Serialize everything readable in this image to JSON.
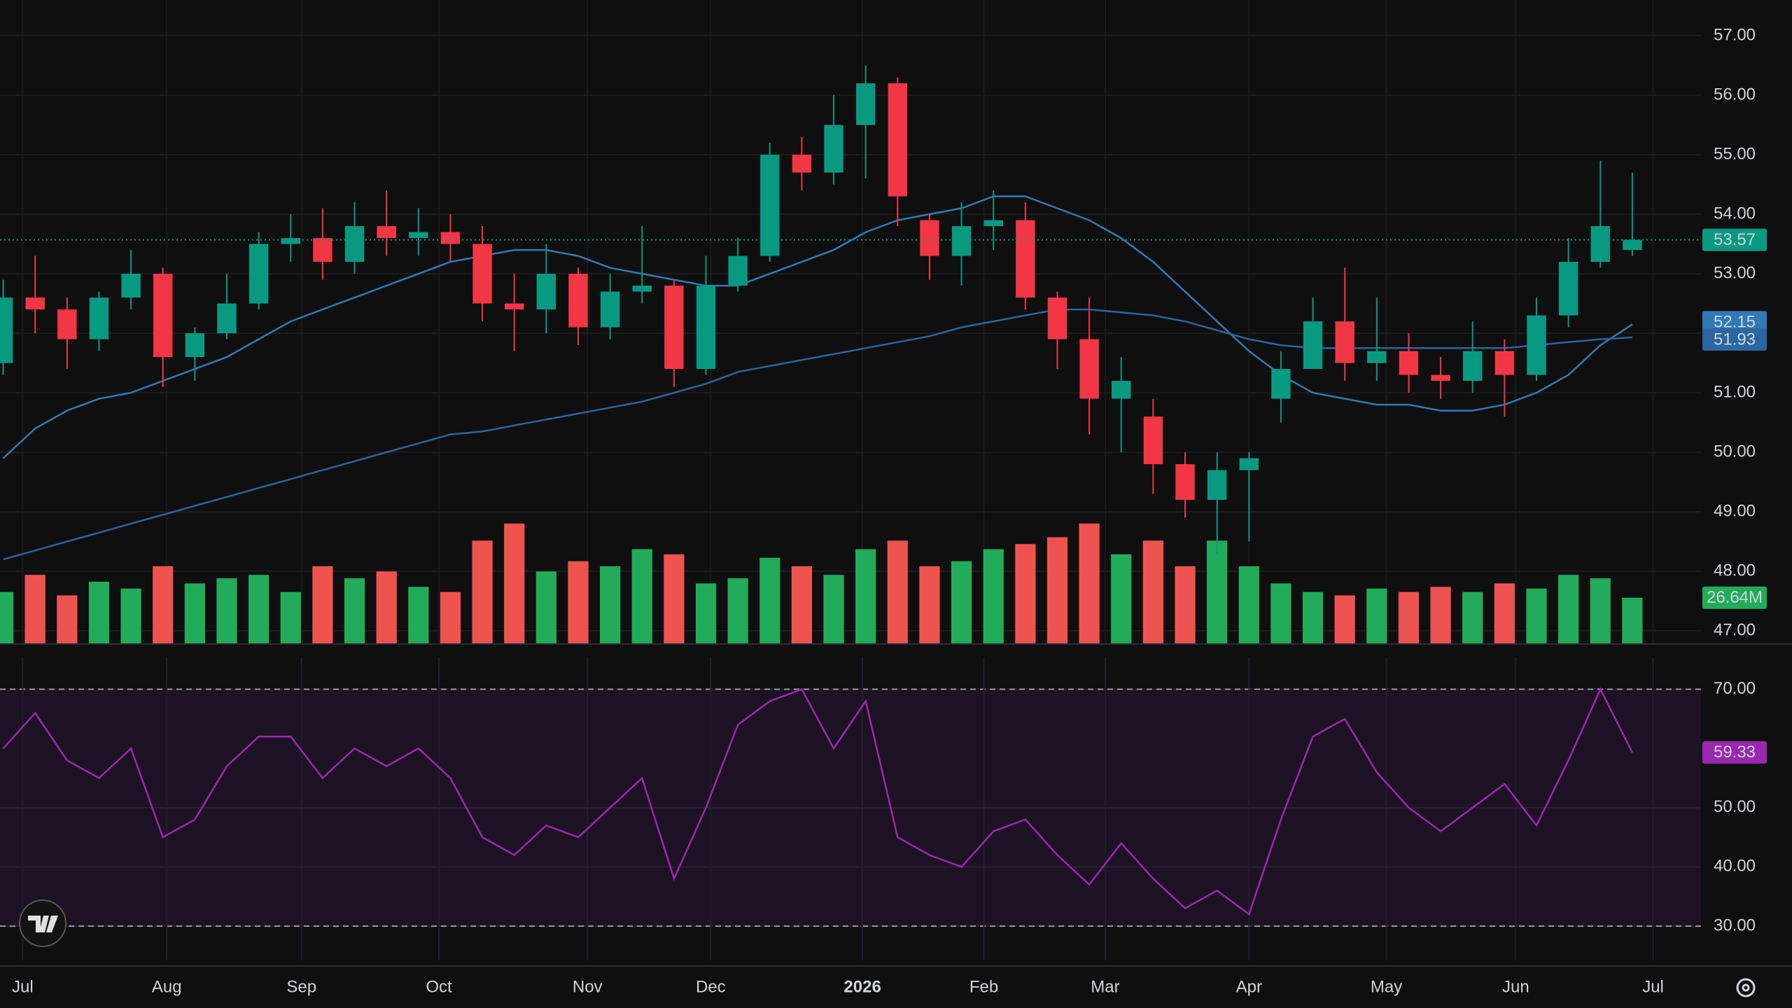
{
  "chart_data": {
    "type": "candlestick",
    "up_color": "#089981",
    "down_color": "#f23645",
    "open": [
      51.5,
      52.6,
      52.4,
      51.9,
      52.6,
      53.0,
      51.6,
      52.0,
      52.5,
      53.5,
      53.6,
      53.2,
      53.8,
      53.6,
      53.7,
      53.5,
      52.5,
      52.4,
      53.0,
      52.1,
      52.7,
      52.8,
      51.4,
      52.8,
      53.3,
      55.0,
      54.7,
      55.5,
      56.2,
      53.9,
      53.3,
      53.8,
      53.9,
      52.6,
      51.9,
      50.9,
      50.6,
      49.8,
      49.2,
      49.7,
      50.9,
      51.4,
      52.2,
      51.5,
      51.7,
      51.3,
      51.2,
      51.7,
      51.3,
      52.3,
      53.2,
      53.4
    ],
    "high": [
      52.9,
      53.3,
      52.6,
      52.7,
      53.4,
      53.1,
      52.1,
      53.0,
      53.7,
      54.0,
      54.1,
      54.2,
      54.4,
      54.1,
      54.0,
      53.8,
      53.0,
      53.5,
      53.1,
      53.0,
      53.8,
      52.9,
      53.3,
      53.6,
      55.2,
      55.3,
      56.0,
      56.5,
      56.3,
      54.0,
      54.2,
      54.4,
      54.2,
      52.7,
      52.6,
      51.6,
      50.9,
      50.0,
      50.0,
      50.0,
      51.7,
      52.6,
      53.1,
      52.6,
      52.0,
      51.6,
      52.2,
      51.9,
      52.6,
      53.6,
      54.9,
      54.7
    ],
    "low": [
      51.3,
      52.0,
      51.4,
      51.7,
      52.4,
      51.1,
      51.2,
      51.9,
      52.4,
      53.2,
      52.9,
      53.0,
      53.3,
      53.3,
      53.2,
      52.2,
      51.7,
      52.0,
      51.8,
      51.9,
      52.5,
      51.1,
      51.3,
      52.7,
      53.2,
      54.4,
      54.5,
      54.6,
      53.8,
      52.9,
      52.8,
      53.4,
      52.4,
      51.4,
      50.3,
      50.0,
      49.3,
      48.9,
      48.3,
      48.5,
      50.5,
      51.4,
      51.2,
      51.2,
      51.0,
      50.9,
      51.0,
      50.6,
      51.2,
      52.1,
      53.1,
      53.3
    ],
    "close": [
      52.6,
      52.4,
      51.9,
      52.6,
      53.0,
      51.6,
      52.0,
      52.5,
      53.5,
      53.6,
      53.2,
      53.8,
      53.6,
      53.7,
      53.5,
      52.5,
      52.4,
      53.0,
      52.1,
      52.7,
      52.8,
      51.4,
      52.8,
      53.3,
      55.0,
      54.7,
      55.5,
      56.2,
      54.3,
      53.3,
      53.8,
      53.9,
      52.6,
      51.9,
      50.9,
      51.2,
      49.8,
      49.2,
      49.7,
      49.9,
      51.4,
      52.2,
      51.5,
      51.7,
      51.3,
      51.2,
      51.7,
      51.3,
      52.3,
      53.2,
      53.8,
      53.57
    ],
    "moving_averages": [
      {
        "color": "#3179b5",
        "values": [
          49.9,
          50.4,
          50.7,
          50.9,
          51.0,
          51.2,
          51.4,
          51.6,
          51.9,
          52.2,
          52.4,
          52.6,
          52.8,
          53.0,
          53.2,
          53.3,
          53.4,
          53.4,
          53.3,
          53.1,
          53.0,
          52.9,
          52.8,
          52.8,
          53.0,
          53.2,
          53.4,
          53.7,
          53.9,
          54.0,
          54.1,
          54.3,
          54.3,
          54.1,
          53.9,
          53.6,
          53.2,
          52.7,
          52.2,
          51.7,
          51.3,
          51.0,
          50.9,
          50.8,
          50.8,
          50.7,
          50.7,
          50.8,
          51.0,
          51.3,
          51.8,
          52.15
        ]
      },
      {
        "color": "#2a66a0",
        "values": [
          48.2,
          48.35,
          48.5,
          48.65,
          48.8,
          48.95,
          49.1,
          49.25,
          49.4,
          49.55,
          49.7,
          49.85,
          50.0,
          50.15,
          50.3,
          50.35,
          50.45,
          50.55,
          50.65,
          50.75,
          50.85,
          51.0,
          51.15,
          51.35,
          51.45,
          51.55,
          51.65,
          51.75,
          51.85,
          51.95,
          52.1,
          52.2,
          52.3,
          52.4,
          52.4,
          52.35,
          52.3,
          52.2,
          52.05,
          51.9,
          51.8,
          51.75,
          51.75,
          51.75,
          51.75,
          51.75,
          51.75,
          51.75,
          51.8,
          51.85,
          51.9,
          51.93
        ]
      }
    ],
    "ylim": [
      46.79,
      57.6
    ],
    "yticks": [
      {
        "value": 57,
        "label": "57.00"
      },
      {
        "value": 56,
        "label": "56.00"
      },
      {
        "value": 55,
        "label": "55.00"
      },
      {
        "value": 54,
        "label": "54.00"
      },
      {
        "value": 53,
        "label": "53.00"
      },
      {
        "value": 52,
        "label": "52.00"
      },
      {
        "value": 51,
        "label": "51.00"
      },
      {
        "value": 50,
        "label": "50.00"
      },
      {
        "value": 49,
        "label": "49.00"
      },
      {
        "value": 48,
        "label": "48.00"
      },
      {
        "value": 47,
        "label": "47.00"
      }
    ],
    "xlim": [
      -0.1,
      53.15
    ],
    "xticks": [
      {
        "value": 0.61,
        "label": "Jul"
      },
      {
        "value": 5.12,
        "label": "Aug"
      },
      {
        "value": 9.34,
        "label": "Sep"
      },
      {
        "value": 13.64,
        "label": "Oct"
      },
      {
        "value": 18.29,
        "label": "Nov"
      },
      {
        "value": 22.15,
        "label": "Dec"
      },
      {
        "value": 26.9,
        "label": "2026",
        "bold": true
      },
      {
        "value": 30.7,
        "label": "Feb"
      },
      {
        "value": 34.5,
        "label": "Mar"
      },
      {
        "value": 39.0,
        "label": "Apr"
      },
      {
        "value": 43.3,
        "label": "May"
      },
      {
        "value": 47.35,
        "label": "Jun"
      },
      {
        "value": 51.65,
        "label": "Jul"
      }
    ],
    "grid": true,
    "volume": {
      "up_color": "#22ab5a",
      "down_color": "#ef5350",
      "ylim": [
        0,
        90
      ],
      "values": [
        30,
        40,
        28,
        36,
        32,
        45,
        35,
        38,
        40,
        30,
        45,
        38,
        42,
        33,
        30,
        60,
        70,
        42,
        48,
        45,
        55,
        52,
        35,
        38,
        50,
        45,
        40,
        55,
        60,
        45,
        48,
        55,
        58,
        62,
        70,
        52,
        60,
        45,
        60,
        45,
        35,
        30,
        28,
        32,
        30,
        33,
        30,
        35,
        32,
        40,
        38,
        26.64
      ],
      "value_labels": [
        null,
        null,
        null,
        null,
        null,
        null,
        null,
        null,
        null,
        null,
        null,
        null,
        null,
        null,
        null,
        null,
        null,
        null,
        null,
        null,
        null,
        null,
        null,
        null,
        null,
        null,
        null,
        null,
        null,
        null,
        null,
        null,
        null,
        null,
        null,
        null,
        null,
        null,
        null,
        null,
        null,
        null,
        null,
        null,
        null,
        null,
        null,
        null,
        null,
        null,
        null,
        "26.64M"
      ]
    },
    "rsi": {
      "color": "#9c27b0",
      "band": [
        30,
        70
      ],
      "ylim": [
        24.2,
        75.4
      ],
      "yticks": [
        {
          "value": 70,
          "label": "70.00"
        },
        {
          "value": 50,
          "label": "50.00"
        },
        {
          "value": 40,
          "label": "40.00"
        },
        {
          "value": 30,
          "label": "30.00"
        }
      ],
      "values": [
        60,
        66,
        58,
        55,
        60,
        45,
        48,
        57,
        62,
        62,
        55,
        60,
        57,
        60,
        55,
        45,
        42,
        47,
        45,
        50,
        55,
        38,
        50,
        64,
        68,
        70,
        60,
        68,
        45,
        42,
        40,
        46,
        48,
        42,
        37,
        44,
        38,
        33,
        36,
        32,
        48,
        62,
        65,
        56,
        50,
        46,
        50,
        54,
        47,
        58,
        70,
        59.33
      ]
    }
  }
}
